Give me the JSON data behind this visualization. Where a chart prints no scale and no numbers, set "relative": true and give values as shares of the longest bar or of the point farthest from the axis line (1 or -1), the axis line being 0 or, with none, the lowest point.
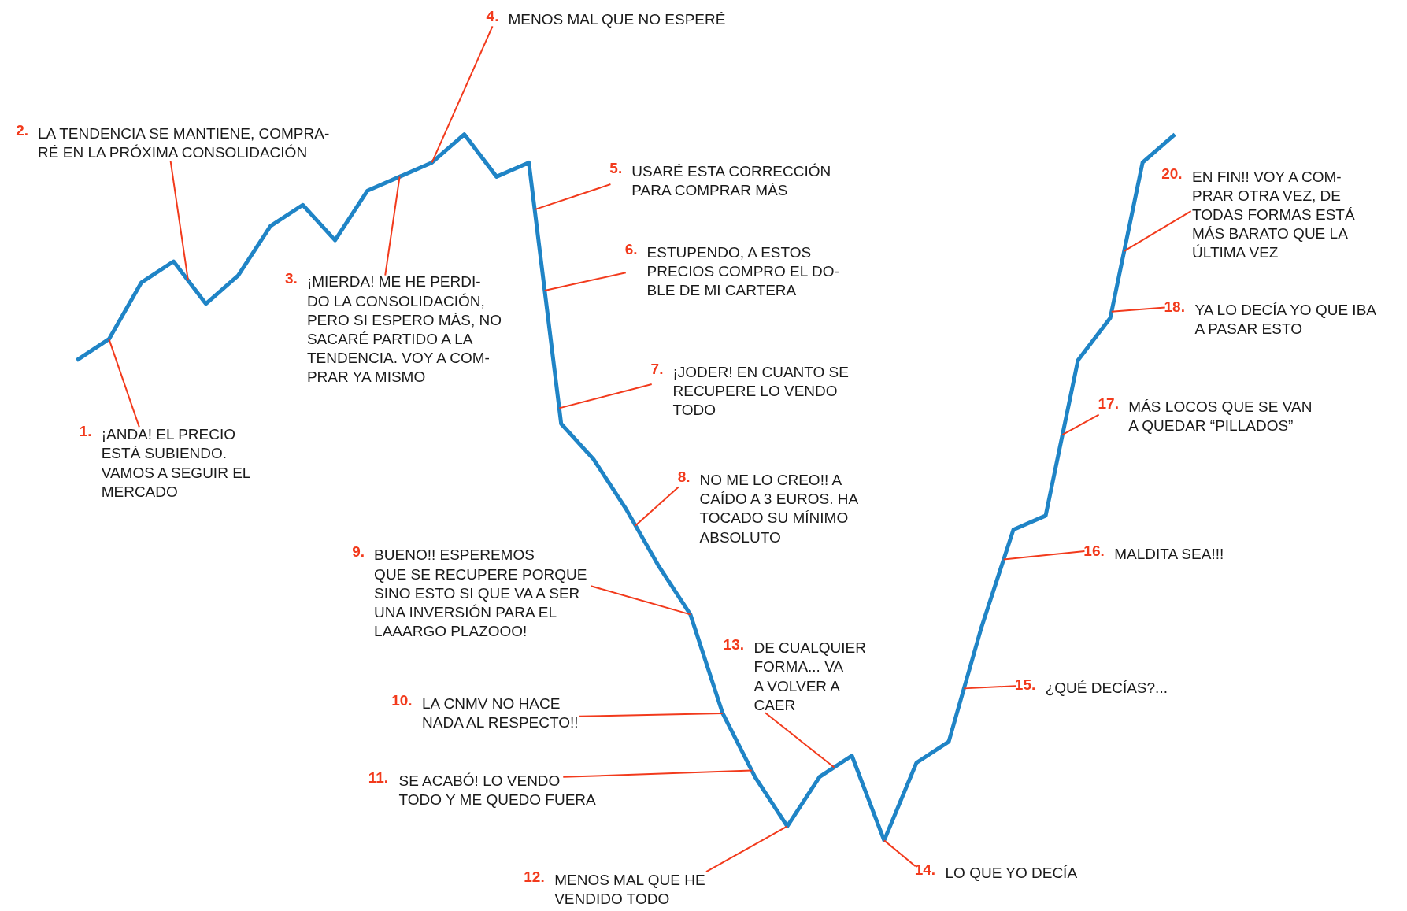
{
  "chart_data": {
    "type": "line",
    "relative": true,
    "tick_labels": false,
    "categories": [
      null,
      null,
      null,
      null,
      null,
      null,
      null,
      null,
      null,
      null,
      null,
      null,
      null,
      null,
      null,
      null,
      null,
      null,
      null,
      null,
      null,
      null,
      null,
      null,
      null,
      null,
      null,
      null,
      null,
      null,
      null,
      null,
      null,
      null,
      null
    ],
    "series": [
      {
        "color": "#1f84c6",
        "values": [
          0.68,
          0.71,
          0.79,
          0.82,
          0.76,
          0.8,
          0.87,
          0.9,
          0.85,
          0.92,
          0.94,
          0.96,
          1.0,
          0.94,
          0.96,
          0.59,
          0.54,
          0.47,
          0.39,
          0.32,
          0.18,
          0.09,
          0.02,
          0.09,
          0.12,
          0,
          0.11,
          0.14,
          0.3,
          0.44,
          0.46,
          0.68,
          0.74,
          0.96,
          1.0
        ]
      }
    ],
    "annotations": [
      "1. ¡ANDA! EL PRECIO\nESTÁ SUBIENDO.\nVAMOS A SEGUIR EL\nMERCADO",
      "2. LA TENDENCIA SE MANTIENE, COMPRA-\nRÉ EN LA PRÓXIMA CONSOLIDACIÓN",
      "3. ¡MIERDA! ME HE PERDI-\nDO LA CONSOLIDACIÓN,\nPERO SI ESPERO MÁS, NO\nSACARÉ PARTIDO A LA\nTENDENCIA. VOY A COM-\nPRAR YA MISMO",
      "4. MENOS MAL QUE NO ESPERÉ",
      "5. USARÉ ESTA CORRECCIÓN\nPARA COMPRAR MÁS",
      "6. ESTUPENDO, A ESTOS\nPRECIOS COMPRO EL DO-\nBLE DE MI CARTERA",
      "7. ¡JODER! EN CUANTO SE\nRECUPERE LO VENDO\nTODO",
      "8. NO ME LO CREO!! A\nCAÍDO A 3 EUROS. HA\nTOCADO SU MÍNIMO\nABSOLUTO",
      "9. BUENO!! ESPEREMOS\nQUE SE RECUPERE PORQUE\nSINO ESTO SI QUE VA A SER\nUNA INVERSIÓN PARA EL\nLAAARGO PLAZOOO!",
      "10. LA CNMV NO HACE\nNADA AL RESPECTO!!",
      "11. SE ACABÓ! LO VENDO\nTODO Y ME QUEDO FUERA",
      "12. MENOS MAL QUE HE\nVENDIDO TODO",
      "13. DE CUALQUIER\nFORMA... VA\nA VOLVER A\nCAER",
      "14. LO QUE YO DECÍA",
      "15. ¿QUÉ DECÍAS?...",
      "16. MALDITA SEA!!!",
      "17. MÁS LOCOS QUE SE VAN\nA QUEDAR “PILLADOS”",
      "18. YA LO DECÍA YO QUE IBA\nA PASAR ESTO",
      "20. EN FIN!! VOY A COM-\nPRAR OTRA VEZ, DE\nTODAS FORMAS ESTÁ\nMÁS BARATO QUE LA\nÚLTIMA VEZ"
    ]
  }
}
